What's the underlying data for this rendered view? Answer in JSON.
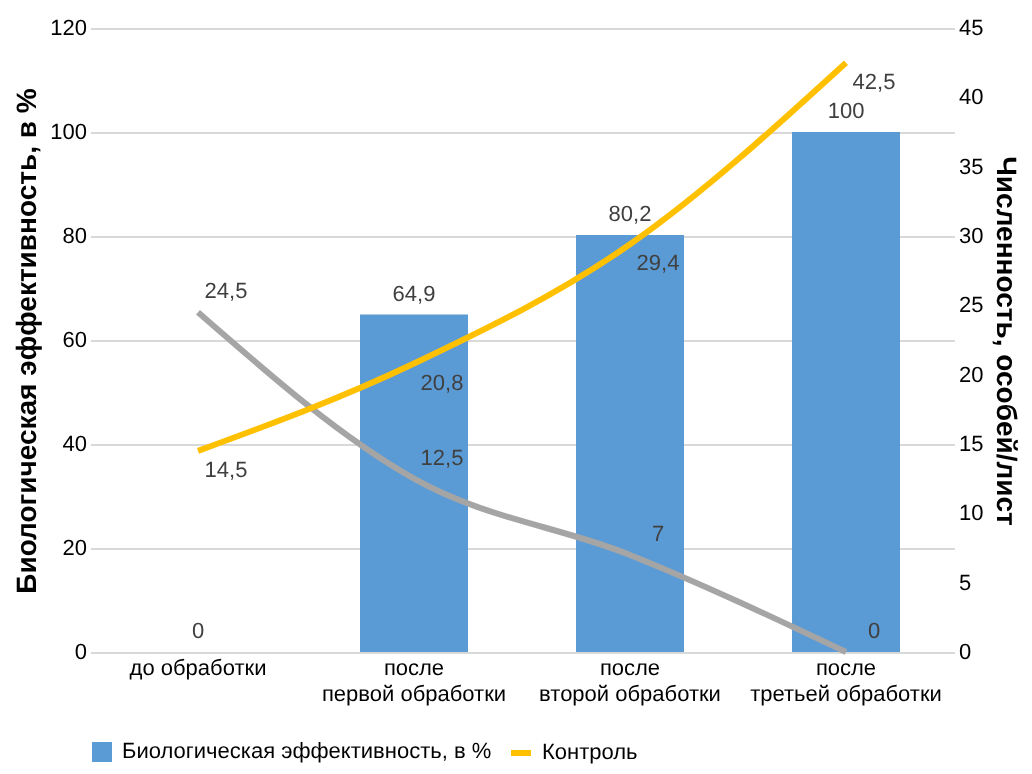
{
  "chart_data": {
    "type": "bar",
    "categories": [
      "до обработки",
      "после первой обработки",
      "после второй обработки",
      "после третьей обработки"
    ],
    "ylabel": "Биологическая эффективность, в %",
    "y2label": "Численность, особей/лист",
    "ylim": [
      0,
      120
    ],
    "yticks": [
      0,
      20,
      40,
      60,
      80,
      100,
      120
    ],
    "y2lim": [
      0,
      45
    ],
    "y2ticks": [
      0,
      5,
      10,
      15,
      20,
      25,
      30,
      35,
      40,
      45
    ],
    "grid": "y",
    "legend": "bottom",
    "marker": "none",
    "line_style": "solid",
    "series": [
      {
        "name": "Биологическая эффективность, в %",
        "color": "#5b9bd5",
        "values": [
          0,
          64.9,
          80.2,
          100
        ],
        "value_labels": [
          "0",
          "64,9",
          "80,2",
          "100"
        ]
      },
      {
        "type": "line",
        "axis": "y2",
        "color": "#a5a5a5",
        "values": [
          24.5,
          12.5,
          7,
          0
        ],
        "value_labels": [
          "24,5",
          "12,5",
          "7",
          "0"
        ]
      },
      {
        "type": "line",
        "axis": "y2",
        "name": "Контроль",
        "color": "#ffc000",
        "values": [
          14.5,
          20.8,
          29.4,
          42.5
        ],
        "value_labels": [
          "14,5",
          "20,8",
          "29,4",
          "42,5"
        ]
      }
    ]
  }
}
